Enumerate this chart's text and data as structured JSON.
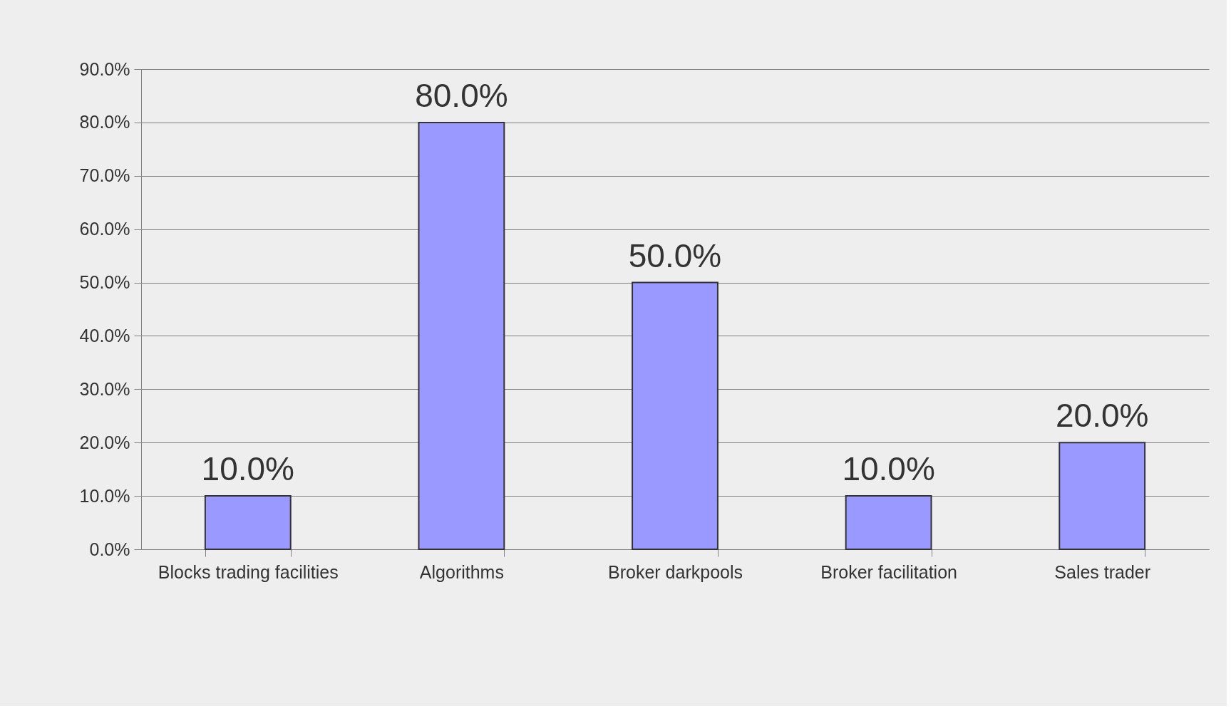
{
  "chart_data": {
    "type": "bar",
    "categories": [
      "Blocks trading facilities",
      "Algorithms",
      "Broker darkpools",
      "Broker facilitation",
      "Sales trader"
    ],
    "values": [
      10,
      80,
      50,
      10,
      20
    ],
    "color": "#9999ff",
    "value_labels": [
      "10.0%",
      "80.0%",
      "50.0%",
      "10.0%",
      "20.0%"
    ],
    "ylim": [
      0,
      90
    ],
    "yticks": [
      {
        "value": 0,
        "label": "0.0%"
      },
      {
        "value": 10,
        "label": "10.0%"
      },
      {
        "value": 20,
        "label": "20.0%"
      },
      {
        "value": 30,
        "label": "30.0%"
      },
      {
        "value": 40,
        "label": "40.0%"
      },
      {
        "value": 50,
        "label": "50.0%"
      },
      {
        "value": 60,
        "label": "60.0%"
      },
      {
        "value": 70,
        "label": "70.0%"
      },
      {
        "value": 80,
        "label": "80.0%"
      },
      {
        "value": 90,
        "label": "90.0%"
      }
    ],
    "grid": "y"
  }
}
